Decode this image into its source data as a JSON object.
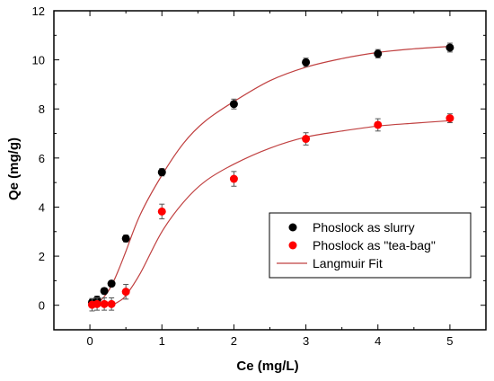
{
  "chart_data": {
    "type": "scatter",
    "xlabel": "Ce (mg/L)",
    "ylabel": "Qe (mg/g)",
    "xlim": [
      -0.5,
      5.5
    ],
    "ylim": [
      -1,
      12
    ],
    "xticks": [
      0,
      1,
      2,
      3,
      4,
      5
    ],
    "yticks": [
      0,
      2,
      4,
      6,
      8,
      10,
      12
    ],
    "grid": false,
    "legend_position": "lower-right",
    "series": [
      {
        "name": "Phoslock as slurry",
        "kind": "points",
        "color": "#000000",
        "x": [
          0.03,
          0.1,
          0.2,
          0.3,
          0.5,
          1.0,
          2.0,
          3.0,
          4.0,
          5.0
        ],
        "y": [
          0.12,
          0.22,
          0.58,
          0.88,
          2.72,
          5.42,
          8.2,
          9.9,
          10.25,
          10.5
        ],
        "err": [
          0.15,
          0.15,
          0.12,
          0.12,
          0.14,
          0.15,
          0.2,
          0.17,
          0.17,
          0.18
        ]
      },
      {
        "name": "Phoslock as \"tea-bag\"",
        "kind": "points",
        "color": "#ff0000",
        "x": [
          0.03,
          0.1,
          0.2,
          0.3,
          0.5,
          1.0,
          2.0,
          3.0,
          4.0,
          5.0
        ],
        "y": [
          0.02,
          0.05,
          0.05,
          0.05,
          0.55,
          3.82,
          5.15,
          6.78,
          7.35,
          7.62
        ],
        "err": [
          0.25,
          0.25,
          0.25,
          0.25,
          0.3,
          0.3,
          0.3,
          0.25,
          0.25,
          0.18
        ]
      },
      {
        "name": "Langmuir Fit",
        "kind": "line",
        "color": "#c04040",
        "fits": [
          {
            "x": [
              0.0,
              0.1,
              0.2,
              0.3,
              0.4,
              0.5,
              0.7,
              1.0,
              1.3,
              1.6,
              2.0,
              2.5,
              3.0,
              3.5,
              4.0,
              4.5,
              5.0
            ],
            "y": [
              0.0,
              0.1,
              0.35,
              0.8,
              1.45,
              2.2,
              3.7,
              5.3,
              6.6,
              7.5,
              8.3,
              9.15,
              9.7,
              10.05,
              10.3,
              10.45,
              10.55
            ]
          },
          {
            "x": [
              0.3,
              0.4,
              0.5,
              0.7,
              1.0,
              1.3,
              1.6,
              2.0,
              2.5,
              3.0,
              3.5,
              4.0,
              4.5,
              5.0
            ],
            "y": [
              0.0,
              0.15,
              0.4,
              1.3,
              3.0,
              4.2,
              5.05,
              5.75,
              6.4,
              6.85,
              7.1,
              7.3,
              7.42,
              7.52
            ]
          }
        ]
      }
    ]
  }
}
